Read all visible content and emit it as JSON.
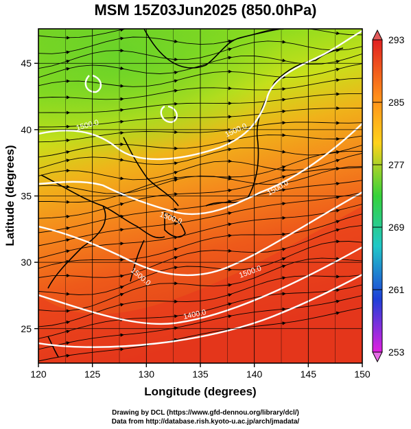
{
  "title": "MSM 15Z03Jun2025 (850.0hPa)",
  "x_axis": {
    "label": "Longitude (degrees)",
    "ticks": [
      "120",
      "125",
      "130",
      "135",
      "140",
      "145",
      "150"
    ]
  },
  "y_axis": {
    "label": "Latitude  (degrees)",
    "ticks": [
      "25",
      "30",
      "35",
      "40",
      "45"
    ]
  },
  "colorbar": {
    "ticks": [
      "293",
      "285",
      "277",
      "269",
      "261",
      "253"
    ],
    "colors": [
      "#e02020",
      "#ff8c1a",
      "#ffd21a",
      "#35d23a",
      "#20c8c8",
      "#1e40d8",
      "#e020e0"
    ]
  },
  "contours": [
    {
      "label": "1500.0"
    },
    {
      "label": "1500.0"
    },
    {
      "label": "1500.0"
    },
    {
      "label": "1500.0"
    },
    {
      "label": "1500.0"
    },
    {
      "label": "1400.0"
    },
    {
      "label": "1500.0"
    }
  ],
  "credits": {
    "line1": "Drawing by DCL (https://www.gfd-dennou.org/library/dcl/)",
    "line2": "Data from http://database.rish.kyoto-u.ac.jp/arch/jmadata/"
  }
}
